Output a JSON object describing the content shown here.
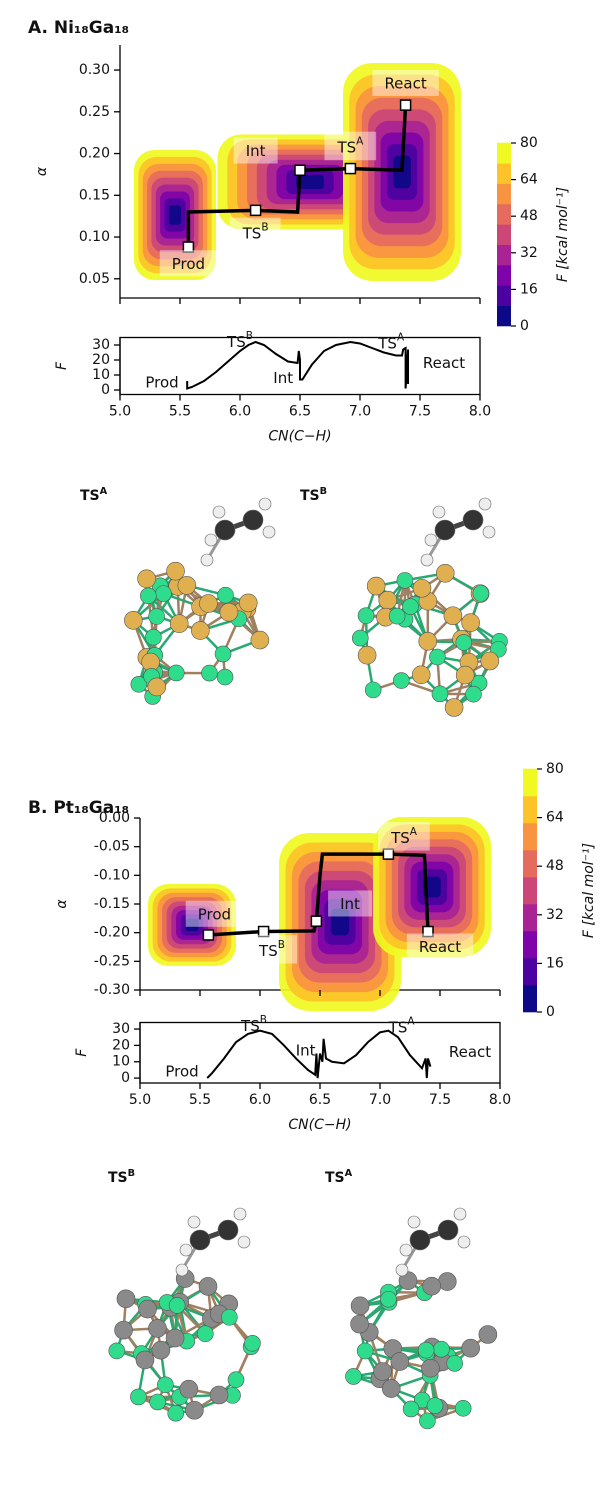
{
  "panels": [
    {
      "title": "A. Ni₁₈Ga₁₈",
      "structures": [
        {
          "text": "TS",
          "sup": "A"
        },
        {
          "text": "TS",
          "sup": "B"
        }
      ]
    },
    {
      "title": "B. Pt₁₈Ga₁₈",
      "structures": [
        {
          "text": "TS",
          "sup": "B"
        },
        {
          "text": "TS",
          "sup": "A"
        }
      ]
    }
  ],
  "chart_data": [
    {
      "type": "contour",
      "ylabel": "α",
      "xlim": [
        5.0,
        8.0
      ],
      "xticks": [
        5.0,
        5.5,
        6.0,
        6.5,
        7.0,
        7.5,
        8.0
      ],
      "ylim": [
        0.027,
        0.33
      ],
      "yticks": [
        {
          "value": 0.05,
          "label": "0.05"
        },
        {
          "value": 0.1,
          "label": "0.10"
        },
        {
          "value": 0.15,
          "label": "0.15"
        },
        {
          "value": 0.2,
          "label": "0.20"
        },
        {
          "value": 0.25,
          "label": "0.25"
        },
        {
          "value": 0.3,
          "label": "0.30"
        }
      ],
      "path": {
        "x": [
          5.57,
          5.57,
          6.13,
          6.48,
          6.5,
          6.92,
          7.35,
          7.38
        ],
        "y": [
          0.088,
          0.13,
          0.132,
          0.13,
          0.18,
          0.182,
          0.18,
          0.258
        ]
      },
      "points": {
        "x": [
          5.57,
          6.13,
          6.5,
          6.92,
          7.38
        ],
        "y": [
          0.088,
          0.132,
          0.18,
          0.182,
          0.258
        ]
      },
      "annotations": [
        {
          "text": "React",
          "x": 7.38,
          "y": 0.284
        },
        {
          "text": "Int",
          "x": 6.13,
          "y": 0.203
        },
        {
          "text": "TS",
          "sup": "A",
          "x": 6.92,
          "y": 0.207
        },
        {
          "text": "TS",
          "sup": "B",
          "x": 6.13,
          "y": 0.104
        },
        {
          "text": "Prod",
          "x": 5.57,
          "y": 0.068
        }
      ],
      "colorbar": {
        "label": "F  [kcal mol⁻¹]",
        "lim": [
          0,
          80
        ],
        "ticks": [
          0,
          16,
          32,
          48,
          64,
          80
        ],
        "colors": [
          "#0d0887",
          "#4c02a1",
          "#7e03a8",
          "#a92395",
          "#cc4778",
          "#e56b5d",
          "#f89441",
          "#fdc328",
          "#f0f921"
        ]
      }
    },
    {
      "type": "line",
      "ylabel": "F",
      "xlabel": "CN(C−H)",
      "color": "#000000",
      "xlim": [
        5.0,
        8.0
      ],
      "xticks": [
        {
          "value": 5,
          "label": "5.0"
        },
        {
          "value": 5.5,
          "label": "5.5"
        },
        {
          "value": 6,
          "label": "6.0"
        },
        {
          "value": 6.5,
          "label": "6.5"
        },
        {
          "value": 7,
          "label": "7.0"
        },
        {
          "value": 7.5,
          "label": "7.5"
        },
        {
          "value": 8,
          "label": "8.0"
        }
      ],
      "ylim": [
        -3,
        35
      ],
      "yticks": [
        0,
        10,
        20,
        30
      ],
      "x": [
        5.56,
        5.56,
        5.6,
        5.7,
        5.8,
        5.9,
        6.0,
        6.07,
        6.13,
        6.2,
        6.3,
        6.4,
        6.48,
        6.49,
        6.5,
        6.5,
        6.52,
        6.6,
        6.7,
        6.8,
        6.92,
        7.0,
        7.1,
        7.2,
        7.3,
        7.35,
        7.36,
        7.38,
        7.38,
        7.4,
        7.4
      ],
      "values": [
        6,
        1,
        2,
        6,
        12,
        19,
        26,
        30,
        32,
        30,
        24,
        19,
        18,
        26,
        20,
        7,
        7,
        17,
        26,
        30,
        32,
        31,
        28,
        25,
        23,
        23,
        27,
        28,
        1,
        27,
        4
      ],
      "annotations": [
        {
          "text": "TS",
          "sup": "B",
          "x": 6.0,
          "y": 32
        },
        {
          "text": "Int",
          "x": 6.36,
          "y": 8
        },
        {
          "text": "TS",
          "sup": "A",
          "x": 7.26,
          "y": 31
        },
        {
          "text": "Prod",
          "x": 5.35,
          "y": 5
        },
        {
          "text": "React",
          "x": 7.7,
          "y": 18
        }
      ]
    },
    {
      "type": "contour",
      "ylabel": "α",
      "xlim": [
        5.0,
        8.0
      ],
      "xticks": [
        5.0,
        5.5,
        6.0,
        6.5,
        7.0,
        7.5,
        8.0
      ],
      "ylim": [
        -0.3,
        0.0
      ],
      "yticks": [
        {
          "value": 0,
          "label": "0.00"
        },
        {
          "value": -0.05,
          "label": "-0.05"
        },
        {
          "value": -0.1,
          "label": "-0.10"
        },
        {
          "value": -0.15,
          "label": "-0.15"
        },
        {
          "value": -0.2,
          "label": "-0.20"
        },
        {
          "value": -0.25,
          "label": "-0.25"
        },
        {
          "value": -0.3,
          "label": "-0.30"
        }
      ],
      "path": {
        "x": [
          5.57,
          6.03,
          6.45,
          6.47,
          6.5,
          6.52,
          7.07,
          7.37,
          7.4
        ],
        "y": [
          -0.204,
          -0.198,
          -0.197,
          -0.18,
          -0.1,
          -0.063,
          -0.063,
          -0.065,
          -0.198
        ]
      },
      "points": {
        "x": [
          5.57,
          6.03,
          6.47,
          7.07,
          7.4
        ],
        "y": [
          -0.204,
          -0.198,
          -0.18,
          -0.063,
          -0.198
        ]
      },
      "annotations": [
        {
          "text": "Prod",
          "x": 5.62,
          "y": -0.168
        },
        {
          "text": "TS",
          "sup": "B",
          "x": 6.1,
          "y": -0.232
        },
        {
          "text": "Int",
          "x": 6.75,
          "y": -0.15
        },
        {
          "text": "TS",
          "sup": "A",
          "x": 7.2,
          "y": -0.035
        },
        {
          "text": "React",
          "x": 7.5,
          "y": -0.225
        }
      ],
      "colorbar": {
        "label": "F  [kcal mol⁻¹]",
        "lim": [
          0,
          80
        ],
        "ticks": [
          0,
          16,
          32,
          48,
          64,
          80
        ],
        "colors": [
          "#0d0887",
          "#4c02a1",
          "#7e03a8",
          "#a92395",
          "#cc4778",
          "#e56b5d",
          "#f89441",
          "#fdc328",
          "#f0f921"
        ]
      }
    },
    {
      "type": "line",
      "ylabel": "F",
      "xlabel": "CN(C−H)",
      "color": "#000000",
      "xlim": [
        5.0,
        8.0
      ],
      "xticks": [
        {
          "value": 5,
          "label": "5.0"
        },
        {
          "value": 5.5,
          "label": "5.5"
        },
        {
          "value": 6,
          "label": "6.0"
        },
        {
          "value": 6.5,
          "label": "6.5"
        },
        {
          "value": 7,
          "label": "7.0"
        },
        {
          "value": 7.5,
          "label": "7.5"
        },
        {
          "value": 8,
          "label": "8.0"
        }
      ],
      "ylim": [
        -3,
        34
      ],
      "yticks": [
        0,
        10,
        20,
        30
      ],
      "x": [
        5.56,
        5.6,
        5.7,
        5.8,
        5.9,
        6.0,
        6.1,
        6.2,
        6.3,
        6.4,
        6.46,
        6.47,
        6.48,
        6.5,
        6.52,
        6.53,
        6.55,
        6.6,
        6.7,
        6.8,
        6.9,
        7.0,
        7.07,
        7.15,
        7.25,
        7.35,
        7.38,
        7.39,
        7.4,
        7.42
      ],
      "values": [
        0,
        3,
        12,
        22,
        27,
        29,
        27,
        20,
        12,
        5,
        2,
        15,
        0,
        15,
        10,
        24,
        12,
        10,
        9,
        14,
        22,
        28,
        29,
        25,
        14,
        6,
        12,
        0,
        12,
        7
      ],
      "annotations": [
        {
          "text": "TS",
          "sup": "B",
          "x": 5.95,
          "y": 32
        },
        {
          "text": "Int",
          "x": 6.38,
          "y": 17
        },
        {
          "text": "TS",
          "sup": "A",
          "x": 7.18,
          "y": 31
        },
        {
          "text": "Prod",
          "x": 5.35,
          "y": 4
        },
        {
          "text": "React",
          "x": 7.75,
          "y": 16
        }
      ]
    }
  ]
}
